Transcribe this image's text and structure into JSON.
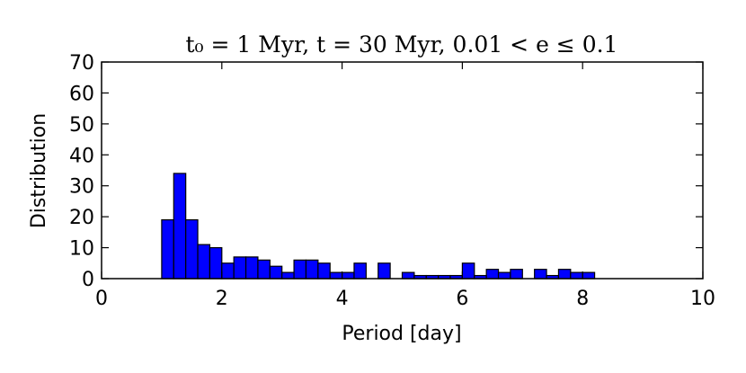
{
  "chart_data": {
    "type": "bar",
    "title": "t₀ = 1 Myr, t = 30 Myr, 0.01 < e ≤ 0.1",
    "xlabel": "Period [day]",
    "ylabel": "Distribution",
    "xlim": [
      0,
      10
    ],
    "ylim": [
      0,
      70
    ],
    "xticks": [
      "0",
      "2",
      "4",
      "6",
      "8",
      "10"
    ],
    "yticks": [
      "0",
      "10",
      "20",
      "30",
      "40",
      "50",
      "60",
      "70"
    ],
    "bin_width": 0.2,
    "bar_color": "#0000ff",
    "edge_color": "#000000",
    "grid": false,
    "bins": [
      {
        "x": 1.0,
        "value": 19
      },
      {
        "x": 1.2,
        "value": 34
      },
      {
        "x": 1.4,
        "value": 19
      },
      {
        "x": 1.6,
        "value": 11
      },
      {
        "x": 1.8,
        "value": 10
      },
      {
        "x": 2.0,
        "value": 5
      },
      {
        "x": 2.2,
        "value": 7
      },
      {
        "x": 2.4,
        "value": 7
      },
      {
        "x": 2.6,
        "value": 6
      },
      {
        "x": 2.8,
        "value": 4
      },
      {
        "x": 3.0,
        "value": 2
      },
      {
        "x": 3.2,
        "value": 6
      },
      {
        "x": 3.4,
        "value": 6
      },
      {
        "x": 3.6,
        "value": 5
      },
      {
        "x": 3.8,
        "value": 2
      },
      {
        "x": 4.0,
        "value": 2
      },
      {
        "x": 4.2,
        "value": 5
      },
      {
        "x": 4.4,
        "value": 0
      },
      {
        "x": 4.6,
        "value": 5
      },
      {
        "x": 4.8,
        "value": 0
      },
      {
        "x": 5.0,
        "value": 2
      },
      {
        "x": 5.2,
        "value": 1
      },
      {
        "x": 5.4,
        "value": 1
      },
      {
        "x": 5.6,
        "value": 1
      },
      {
        "x": 5.8,
        "value": 1
      },
      {
        "x": 6.0,
        "value": 5
      },
      {
        "x": 6.2,
        "value": 1
      },
      {
        "x": 6.4,
        "value": 3
      },
      {
        "x": 6.6,
        "value": 2
      },
      {
        "x": 6.8,
        "value": 3
      },
      {
        "x": 7.0,
        "value": 0
      },
      {
        "x": 7.2,
        "value": 3
      },
      {
        "x": 7.4,
        "value": 1
      },
      {
        "x": 7.6,
        "value": 3
      },
      {
        "x": 7.8,
        "value": 2
      },
      {
        "x": 8.0,
        "value": 2
      }
    ]
  }
}
